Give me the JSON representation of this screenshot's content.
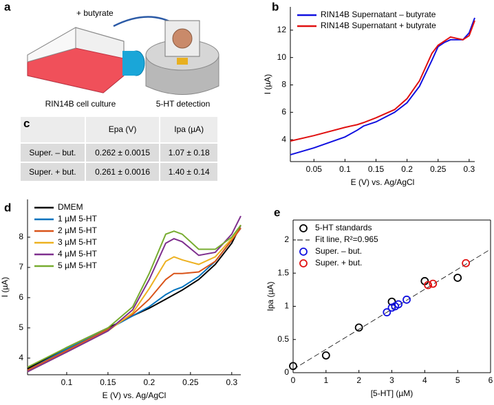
{
  "panel_a": {
    "panel_label": "a",
    "arrow_label": "+ butyrate",
    "left_caption": "RIN14B cell culture",
    "right_caption": "5-HT detection"
  },
  "table": {
    "panel_label": "c",
    "columns": [
      "Epa (V)",
      "Ipa (µA)"
    ],
    "rows": [
      [
        "Super. – but.",
        "0.262 ± 0.0015",
        "1.07 ± 0.18"
      ],
      [
        "Super. + but.",
        "0.261 ± 0.0016",
        "1.40 ± 0.14"
      ]
    ]
  },
  "chart_data": [
    {
      "type": "line",
      "panel_label": "b",
      "xlabel": "E (V) vs. Ag/AgCl",
      "ylabel": "I (µA)",
      "legend": "upper left",
      "xlim": [
        0.012,
        0.309
      ],
      "ylim": [
        2.4,
        13.7
      ],
      "xticks": [
        0.05,
        0.1,
        0.15,
        0.2,
        0.25,
        0.3
      ],
      "yticks": [
        4,
        6,
        8,
        10,
        12
      ],
      "x": [
        0.012,
        0.05,
        0.1,
        0.12,
        0.13,
        0.15,
        0.18,
        0.2,
        0.22,
        0.24,
        0.25,
        0.26,
        0.27,
        0.28,
        0.29,
        0.3,
        0.309
      ],
      "series": [
        {
          "name": "RIN14B Supernatant – butyrate",
          "color": "#1010e0",
          "values": [
            2.9,
            3.4,
            4.2,
            4.7,
            5.0,
            5.3,
            6.0,
            6.7,
            7.9,
            9.8,
            10.8,
            11.1,
            11.3,
            11.3,
            11.3,
            11.8,
            12.9
          ]
        },
        {
          "name": "RIN14B Supernatant + butyrate",
          "color": "#e01010",
          "values": [
            3.9,
            4.3,
            4.9,
            5.1,
            5.25,
            5.6,
            6.2,
            7.0,
            8.3,
            10.3,
            10.9,
            11.2,
            11.5,
            11.4,
            11.3,
            11.6,
            12.7
          ]
        }
      ]
    },
    {
      "type": "line",
      "panel_label": "d",
      "xlabel": "E (V) vs. Ag/AgCl",
      "ylabel": "I (µA)",
      "legend": "upper left",
      "xlim": [
        0.0525,
        0.311
      ],
      "ylim": [
        3.45,
        9.25
      ],
      "xticks": [
        0.1,
        0.15,
        0.2,
        0.25,
        0.3
      ],
      "yticks": [
        4,
        5,
        6,
        7,
        8
      ],
      "x": [
        0.0525,
        0.1,
        0.15,
        0.18,
        0.2,
        0.22,
        0.23,
        0.24,
        0.26,
        0.28,
        0.3,
        0.311
      ],
      "series": [
        {
          "name": "DMEM",
          "color": "#000000",
          "values": [
            3.65,
            4.35,
            5.0,
            5.4,
            5.65,
            5.95,
            6.1,
            6.25,
            6.6,
            7.1,
            7.8,
            8.4
          ]
        },
        {
          "name": "1 µM 5-HT",
          "color": "#0072bd",
          "values": [
            3.6,
            4.3,
            4.95,
            5.4,
            5.7,
            6.1,
            6.25,
            6.35,
            6.7,
            7.2,
            7.9,
            8.3
          ]
        },
        {
          "name": "2 µM 5-HT",
          "color": "#d95319",
          "values": [
            3.6,
            4.25,
            4.95,
            5.45,
            5.95,
            6.6,
            6.8,
            6.8,
            6.85,
            7.2,
            7.9,
            8.3
          ]
        },
        {
          "name": "3 µM 5-HT",
          "color": "#edb120",
          "values": [
            3.55,
            4.2,
            4.9,
            5.5,
            6.3,
            7.2,
            7.35,
            7.25,
            7.1,
            7.35,
            7.95,
            8.4
          ]
        },
        {
          "name": "4 µM 5-HT",
          "color": "#7e2f8e",
          "values": [
            3.55,
            4.2,
            4.9,
            5.6,
            6.6,
            7.8,
            7.95,
            7.85,
            7.4,
            7.5,
            8.1,
            8.7
          ]
        },
        {
          "name": "5 µM 5-HT",
          "color": "#77ac30",
          "values": [
            3.7,
            4.35,
            5.0,
            5.7,
            6.8,
            8.1,
            8.2,
            8.1,
            7.6,
            7.6,
            8.0,
            8.4
          ]
        }
      ]
    },
    {
      "type": "scatter",
      "panel_label": "e",
      "xlabel": "[5-HT] (µM)",
      "ylabel": "Ipa (µA)",
      "legend": "upper left",
      "box": true,
      "xlim": [
        0,
        6
      ],
      "ylim": [
        0,
        2.3
      ],
      "xticks": [
        0,
        1,
        2,
        3,
        4,
        5,
        6
      ],
      "yticks": [
        0,
        0.5,
        1,
        1.5,
        2
      ],
      "series": [
        {
          "name": "5-HT standards",
          "color": "#000000",
          "x": [
            0,
            1,
            2,
            3,
            4,
            5
          ],
          "values": [
            0.1,
            0.26,
            0.68,
            1.07,
            1.38,
            1.43
          ]
        },
        {
          "name": "Fit line, R²=0.965",
          "color": "#000000",
          "mode": "dashed-line",
          "x": [
            0,
            6
          ],
          "values": [
            0.05,
            1.86
          ]
        },
        {
          "name": "Super. – but.",
          "color": "#1010e0",
          "x": [
            2.85,
            3.0,
            3.1,
            3.2,
            3.45
          ],
          "values": [
            0.91,
            0.98,
            1.0,
            1.03,
            1.1
          ]
        },
        {
          "name": "Super. + but.",
          "color": "#e01010",
          "x": [
            4.1,
            4.25,
            5.25
          ],
          "values": [
            1.32,
            1.34,
            1.65
          ]
        }
      ]
    }
  ]
}
